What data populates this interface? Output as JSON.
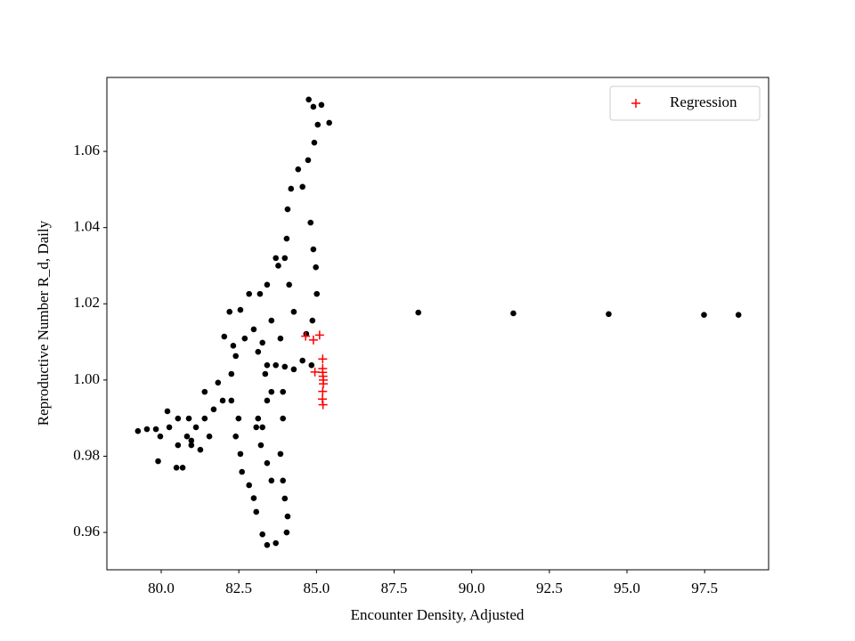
{
  "chart_data": {
    "type": "scatter",
    "x_label": "Encounter Density, Adjusted",
    "y_label": "Reproductive Number R_d, Daily",
    "xlim": [
      78.25,
      99.56
    ],
    "ylim": [
      0.9502,
      1.0794
    ],
    "xticks": [
      {
        "value": 80,
        "label": "80.0"
      },
      {
        "value": 82.5,
        "label": "82.5"
      },
      {
        "value": 85,
        "label": "85.0"
      },
      {
        "value": 87.5,
        "label": "87.5"
      },
      {
        "value": 90,
        "label": "90.0"
      },
      {
        "value": 92.5,
        "label": "92.5"
      },
      {
        "value": 95,
        "label": "95.0"
      },
      {
        "value": 97.5,
        "label": "97.5"
      }
    ],
    "yticks": [
      0.96,
      0.98,
      {
        "value": 1,
        "label": "1.00"
      },
      1.02,
      1.04,
      1.06
    ],
    "legend_position": "upper right",
    "series": [
      {
        "color": "#000000",
        "marker": "dot",
        "x": [
          88.28,
          91.34,
          94.41,
          97.48,
          98.59,
          84.75,
          84.9,
          85.16,
          85.41,
          85.04,
          84.93,
          84.73,
          84.55,
          84.41,
          84.18,
          84.07,
          84.04,
          84.81,
          84.9,
          84.98,
          85.01,
          84.87,
          84.67,
          84.55,
          84.84,
          83.69,
          83.77,
          83.41,
          83.18,
          82.83,
          82.55,
          82.2,
          82.03,
          82.32,
          82.69,
          83.12,
          83.41,
          83.69,
          83.98,
          84.27,
          84.27,
          84.12,
          83.98,
          83.55,
          83.84,
          83.26,
          82.98,
          82.4,
          82.26,
          81.83,
          81.4,
          82.26,
          82.49,
          82.4,
          82.55,
          82.6,
          82.83,
          82.98,
          83.06,
          83.26,
          83.41,
          83.69,
          84.04,
          84.07,
          83.98,
          83.92,
          83.84,
          83.92,
          83.92,
          83.41,
          83.26,
          83.12,
          83.35,
          83.55,
          83.06,
          83.21,
          83.41,
          83.55,
          81.69,
          81.4,
          81.12,
          80.89,
          80.83,
          80.54,
          80.49,
          80.26,
          79.97,
          79.83,
          79.54,
          79.25,
          79.9,
          80.2,
          80.54,
          80.97,
          81.26,
          81.55,
          81.98,
          80.69,
          80.97
        ],
        "y": [
          1.0177,
          1.0175,
          1.0173,
          1.0171,
          1.0171,
          1.0736,
          1.0717,
          1.0722,
          1.0675,
          1.067,
          1.0623,
          1.0577,
          1.0507,
          1.0553,
          1.0502,
          1.0448,
          1.0371,
          1.0413,
          1.0343,
          1.0296,
          1.0226,
          1.0156,
          1.0121,
          1.0051,
          1.0039,
          1.032,
          1.03,
          1.025,
          1.0226,
          1.0226,
          1.0184,
          1.0179,
          1.0114,
          1.009,
          1.0109,
          1.0074,
          1.0039,
          1.0039,
          1.0035,
          1.0028,
          1.0179,
          1.025,
          1.032,
          1.0156,
          1.0109,
          1.0098,
          1.0133,
          1.0063,
          1.0016,
          0.9993,
          0.9969,
          0.9946,
          0.9899,
          0.9852,
          0.9806,
          0.9759,
          0.9724,
          0.969,
          0.9654,
          0.9595,
          0.9567,
          0.9572,
          0.96,
          0.9642,
          0.9689,
          0.9736,
          0.9806,
          0.9899,
          0.9969,
          0.9946,
          0.9876,
          0.9899,
          1.0016,
          0.9969,
          0.9876,
          0.9829,
          0.9782,
          0.9736,
          0.9923,
          0.9899,
          0.9876,
          0.9899,
          0.9852,
          0.9829,
          0.977,
          0.9876,
          0.9852,
          0.9871,
          0.9871,
          0.9866,
          0.9787,
          0.9918,
          0.9899,
          0.9841,
          0.9817,
          0.9852,
          0.9946,
          0.977,
          0.9829
        ]
      },
      {
        "name": "Regression",
        "color": "#ff0000",
        "marker": "plus",
        "x": [
          84.65,
          84.9,
          85.1,
          85.2,
          85.2,
          85.21,
          85.22,
          85.2,
          85.19,
          85.21,
          85.2,
          85.22,
          84.95
        ],
        "y": [
          1.0115,
          1.0105,
          1.0118,
          1.0055,
          1.003,
          1.001,
          0.999,
          0.997,
          0.995,
          0.9935,
          1.002,
          1.0,
          1.0021
        ]
      }
    ]
  }
}
